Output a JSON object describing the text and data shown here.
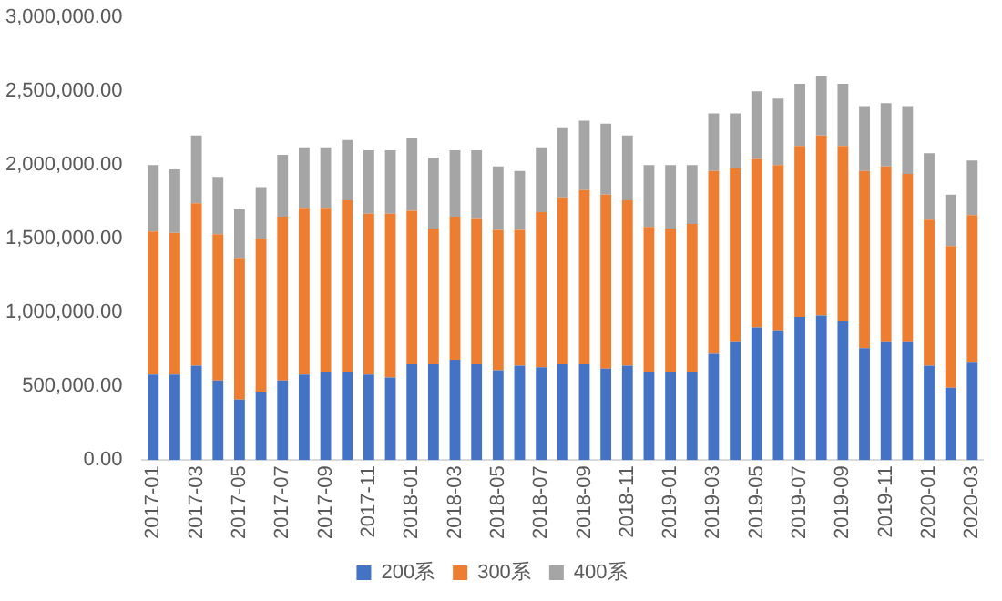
{
  "chart_data": {
    "type": "bar",
    "stacked": true,
    "categories": [
      "2017-01",
      null,
      "2017-03",
      null,
      "2017-05",
      null,
      "2017-07",
      null,
      "2017-09",
      null,
      "2017-11",
      null,
      "2018-01",
      null,
      "2018-03",
      null,
      "2018-05",
      null,
      "2018-07",
      null,
      "2018-09",
      null,
      "2018-11",
      null,
      "2019-01",
      null,
      "2019-03",
      null,
      "2019-05",
      null,
      "2019-07",
      null,
      "2019-09",
      null,
      "2019-11",
      null,
      "2020-01",
      null,
      "2020-03"
    ],
    "series": [
      {
        "name": "200系",
        "color": "#4472c4",
        "values": [
          580000,
          580000,
          640000,
          540000,
          410000,
          460000,
          540000,
          580000,
          600000,
          600000,
          580000,
          560000,
          650000,
          650000,
          680000,
          650000,
          610000,
          640000,
          630000,
          650000,
          650000,
          620000,
          640000,
          600000,
          600000,
          600000,
          720000,
          800000,
          900000,
          880000,
          970000,
          980000,
          940000,
          760000,
          800000,
          800000,
          640000,
          490000,
          660000
        ]
      },
      {
        "name": "300系",
        "color": "#ed7d31",
        "values": [
          970000,
          960000,
          1100000,
          990000,
          960000,
          1040000,
          1110000,
          1130000,
          1110000,
          1160000,
          1090000,
          1110000,
          1040000,
          920000,
          970000,
          990000,
          950000,
          920000,
          1050000,
          1130000,
          1180000,
          1180000,
          1120000,
          980000,
          970000,
          1000000,
          1240000,
          1180000,
          1140000,
          1120000,
          1160000,
          1220000,
          1190000,
          1200000,
          1190000,
          1140000,
          990000,
          960000,
          1000000
        ]
      },
      {
        "name": "400系",
        "color": "#a5a5a5",
        "values": [
          450000,
          430000,
          460000,
          390000,
          330000,
          350000,
          420000,
          410000,
          410000,
          410000,
          430000,
          430000,
          490000,
          480000,
          450000,
          460000,
          430000,
          400000,
          440000,
          470000,
          470000,
          480000,
          440000,
          420000,
          430000,
          400000,
          390000,
          370000,
          460000,
          450000,
          420000,
          400000,
          420000,
          440000,
          430000,
          460000,
          450000,
          350000,
          370000
        ]
      }
    ],
    "ylim": [
      0,
      3000000
    ],
    "yticks": [
      {
        "value": 0,
        "label": "0.00"
      },
      {
        "value": 500000,
        "label": "500,000.00"
      },
      {
        "value": 1000000,
        "label": "1,000,000.00"
      },
      {
        "value": 1500000,
        "label": "1,500,000.00"
      },
      {
        "value": 2000000,
        "label": "2,000,000.00"
      },
      {
        "value": 2500000,
        "label": "2,500,000.00"
      },
      {
        "value": 3000000,
        "label": "3,000,000.00"
      }
    ],
    "grid": false,
    "legend": "bottom"
  }
}
